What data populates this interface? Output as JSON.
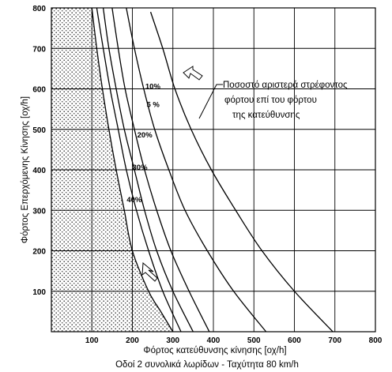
{
  "chart_data": {
    "type": "line",
    "xlabel": "Φόρτος κατεύθυνσης κίνησης [οχ/h]",
    "subtitle": "Οδοί 2 συνολικά λωρίδων - Ταχύτητα  80 km/h",
    "ylabel": "Φόρτος Επερχόμενης Κίνησης [οχ/h]",
    "xlim": [
      0,
      800
    ],
    "ylim": [
      0,
      800
    ],
    "xticks": [
      100,
      200,
      300,
      400,
      500,
      600,
      700,
      800
    ],
    "yticks": [
      100,
      200,
      300,
      400,
      500,
      600,
      700,
      800
    ],
    "grid": true,
    "shaded_region": {
      "description": "stippled region left of the boundary curve",
      "boundary": [
        [
          300,
          0
        ],
        [
          270,
          50
        ],
        [
          240,
          100
        ],
        [
          200,
          200
        ],
        [
          180,
          300
        ],
        [
          160,
          400
        ],
        [
          142,
          500
        ],
        [
          126,
          600
        ],
        [
          112,
          700
        ],
        [
          100,
          800
        ]
      ]
    },
    "annotation": {
      "lines": [
        "Ποσοστό αριστερά στρέφοντος",
        "φόρτου επί του φόρτου",
        "της κατεύθυνσης"
      ]
    },
    "series": [
      {
        "name": "5 %",
        "values": [
          [
            695,
            0
          ],
          [
            600,
            100
          ],
          [
            520,
            200
          ],
          [
            455,
            300
          ],
          [
            395,
            400
          ],
          [
            345,
            500
          ],
          [
            305,
            600
          ],
          [
            275,
            700
          ],
          [
            245,
            790
          ]
        ]
      },
      {
        "name": "10%",
        "values": [
          [
            530,
            0
          ],
          [
            450,
            100
          ],
          [
            385,
            200
          ],
          [
            330,
            300
          ],
          [
            290,
            400
          ],
          [
            255,
            500
          ],
          [
            228,
            600
          ],
          [
            205,
            700
          ],
          [
            185,
            800
          ]
        ]
      },
      {
        "name": "20%",
        "values": [
          [
            390,
            0
          ],
          [
            340,
            100
          ],
          [
            295,
            200
          ],
          [
            260,
            300
          ],
          [
            230,
            400
          ],
          [
            205,
            500
          ],
          [
            182,
            600
          ],
          [
            165,
            700
          ],
          [
            150,
            800
          ]
        ]
      },
      {
        "name": "30%",
        "values": [
          [
            350,
            0
          ],
          [
            300,
            100
          ],
          [
            260,
            200
          ],
          [
            230,
            300
          ],
          [
            205,
            400
          ],
          [
            180,
            500
          ],
          [
            160,
            600
          ],
          [
            142,
            700
          ],
          [
            128,
            800
          ]
        ]
      },
      {
        "name": "40%",
        "values": [
          [
            320,
            0
          ],
          [
            275,
            100
          ],
          [
            240,
            200
          ],
          [
            210,
            300
          ],
          [
            185,
            400
          ],
          [
            165,
            500
          ],
          [
            145,
            600
          ],
          [
            128,
            700
          ],
          [
            112,
            800
          ]
        ]
      }
    ]
  }
}
